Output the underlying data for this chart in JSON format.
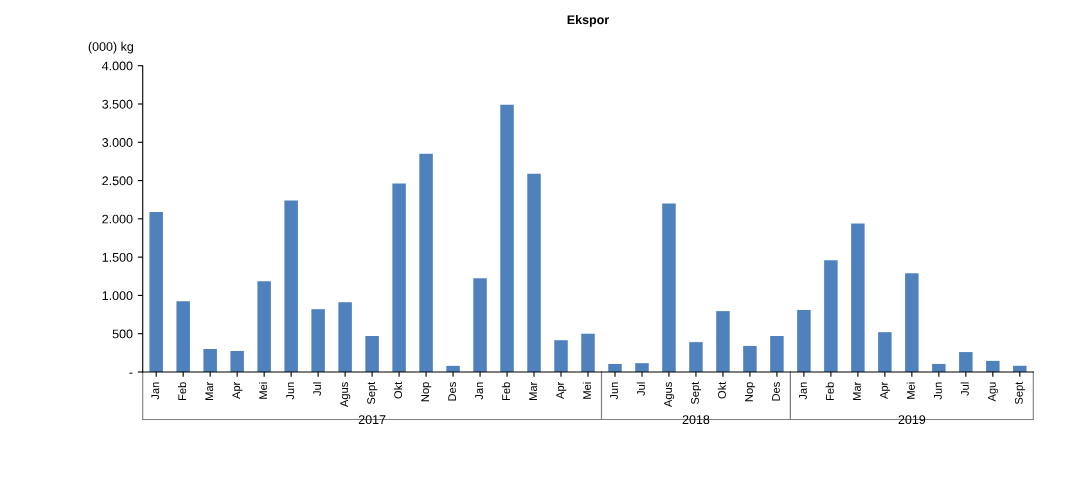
{
  "chart_data": {
    "type": "bar",
    "title": "Ekspor",
    "ylabel": "(000) kg",
    "categories": [
      "Jan",
      "Feb",
      "Mar",
      "Apr",
      "Mei",
      "Jun",
      "Jul",
      "Agus",
      "Sept",
      "Okt",
      "Nop",
      "Des",
      "Jan",
      "Feb",
      "Mar",
      "Apr",
      "Mei",
      "Jun",
      "Jul",
      "Agus",
      "Sept",
      "Okt",
      "Nop",
      "Des",
      "Jan",
      "Feb",
      "Mar",
      "Apr",
      "Mei",
      "Jun",
      "Jul",
      "Agu",
      "Sept"
    ],
    "values": [
      2090,
      925,
      300,
      275,
      1185,
      2240,
      820,
      910,
      470,
      2460,
      2850,
      80,
      1225,
      3490,
      2590,
      415,
      500,
      105,
      115,
      2200,
      390,
      795,
      340,
      470,
      810,
      1460,
      1940,
      520,
      1290,
      105,
      260,
      145,
      80
    ],
    "color": "#4f81bd",
    "ylim": [
      0,
      4000
    ],
    "yticks": [
      {
        "value": 0,
        "label": "-"
      },
      {
        "value": 500,
        "label": "500"
      },
      {
        "value": 1000,
        "label": "1.000"
      },
      {
        "value": 1500,
        "label": "1.500"
      },
      {
        "value": 2000,
        "label": "2.000"
      },
      {
        "value": 2500,
        "label": "2.500"
      },
      {
        "value": 3000,
        "label": "3.000"
      },
      {
        "value": 3500,
        "label": "3.500"
      },
      {
        "value": 4000,
        "label": "4.000"
      }
    ],
    "annotations": [
      "2017",
      "2018",
      "2019"
    ],
    "grid": false,
    "legend": false
  }
}
